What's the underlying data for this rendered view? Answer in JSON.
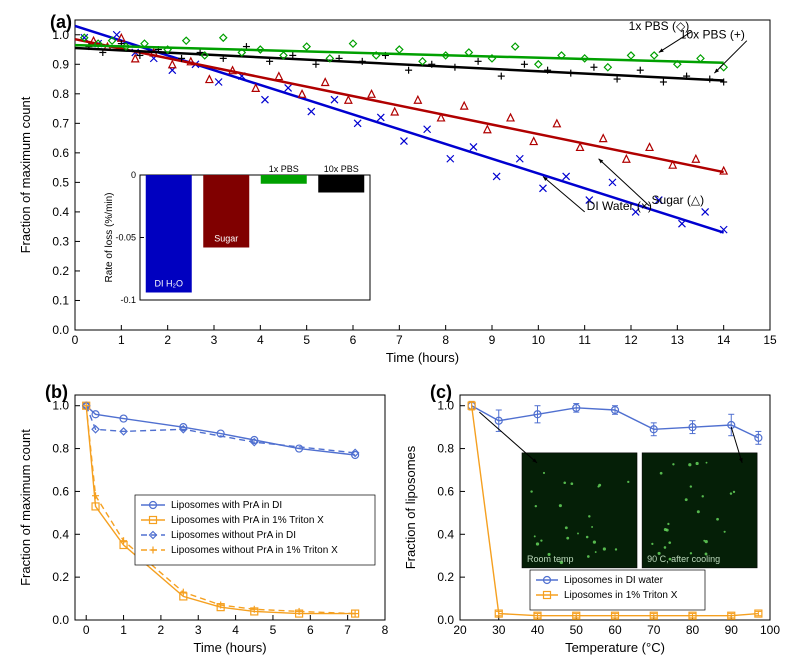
{
  "background_color": "#ffffff",
  "panelA": {
    "label": "(a)",
    "type": "scatter+line",
    "xlabel": "Time (hours)",
    "ylabel": "Fraction of maximum count",
    "label_fontsize": 13,
    "xlim": [
      0,
      15
    ],
    "ylim": [
      0,
      1.05
    ],
    "xtick_step": 1,
    "ytick_step": 0.1,
    "grid_color": "none",
    "axis_color": "#000000",
    "series": {
      "pbs1": {
        "name": "1x PBS (◇)",
        "marker": "diamond",
        "line_color": "#00A000",
        "line_width": 2.5,
        "x": [
          0.2,
          0.5,
          0.8,
          1.1,
          1.5,
          2,
          2.4,
          2.8,
          3.2,
          3.6,
          4,
          4.5,
          5,
          5.5,
          6,
          6.5,
          7,
          7.5,
          8,
          8.5,
          9,
          9.5,
          10,
          10.5,
          11,
          11.5,
          12,
          12.5,
          13,
          13.5,
          14
        ],
        "y": [
          0.99,
          0.97,
          0.98,
          0.96,
          0.97,
          0.95,
          0.98,
          0.93,
          0.99,
          0.94,
          0.95,
          0.93,
          0.96,
          0.92,
          0.97,
          0.93,
          0.95,
          0.91,
          0.93,
          0.94,
          0.92,
          0.96,
          0.9,
          0.93,
          0.92,
          0.89,
          0.93,
          0.93,
          0.9,
          0.92,
          0.89
        ],
        "fit_y0": 0.965,
        "fit_y1": 0.905
      },
      "pbs10": {
        "name": "10x PBS (+)",
        "marker": "plus",
        "line_color": "#000000",
        "line_width": 2.5,
        "x": [
          0.3,
          0.6,
          1.0,
          1.4,
          1.8,
          2.3,
          2.7,
          3.2,
          3.7,
          4.2,
          4.7,
          5.2,
          5.7,
          6.2,
          6.7,
          7.2,
          7.7,
          8.2,
          8.7,
          9.2,
          9.7,
          10.2,
          10.7,
          11.2,
          11.7,
          12.2,
          12.7,
          13.2,
          13.7,
          14
        ],
        "y": [
          0.96,
          0.94,
          0.97,
          0.93,
          0.95,
          0.92,
          0.94,
          0.92,
          0.96,
          0.91,
          0.93,
          0.9,
          0.92,
          0.91,
          0.93,
          0.88,
          0.9,
          0.89,
          0.91,
          0.86,
          0.9,
          0.88,
          0.87,
          0.89,
          0.85,
          0.88,
          0.84,
          0.86,
          0.85,
          0.84
        ],
        "fit_y0": 0.955,
        "fit_y1": 0.845
      },
      "sugar": {
        "name": "Sugar (△)",
        "marker": "triangle",
        "line_color": "#B00000",
        "line_width": 2.5,
        "x": [
          0.4,
          0.7,
          1.0,
          1.3,
          1.7,
          2.1,
          2.5,
          2.9,
          3.4,
          3.9,
          4.4,
          4.9,
          5.4,
          5.9,
          6.4,
          6.9,
          7.4,
          7.9,
          8.4,
          8.9,
          9.4,
          9.9,
          10.4,
          10.9,
          11.4,
          11.9,
          12.4,
          12.9,
          13.4,
          14
        ],
        "y": [
          0.98,
          0.96,
          0.99,
          0.92,
          0.94,
          0.9,
          0.91,
          0.85,
          0.88,
          0.82,
          0.86,
          0.8,
          0.84,
          0.78,
          0.8,
          0.74,
          0.78,
          0.72,
          0.76,
          0.68,
          0.72,
          0.64,
          0.7,
          0.62,
          0.65,
          0.58,
          0.62,
          0.56,
          0.58,
          0.54
        ],
        "fit_y0": 0.985,
        "fit_y1": 0.535
      },
      "di": {
        "name": "DI Water (×)",
        "marker": "x",
        "line_color": "#0000D0",
        "line_width": 2.5,
        "x": [
          0.2,
          0.5,
          0.9,
          1.3,
          1.7,
          2.1,
          2.6,
          3.1,
          3.6,
          4.1,
          4.6,
          5.1,
          5.6,
          6.1,
          6.6,
          7.1,
          7.6,
          8.1,
          8.6,
          9.1,
          9.6,
          10.1,
          10.6,
          11.1,
          11.6,
          12.1,
          12.6,
          13.1,
          13.6,
          14
        ],
        "y": [
          0.99,
          0.97,
          1.0,
          0.94,
          0.92,
          0.88,
          0.9,
          0.84,
          0.86,
          0.78,
          0.82,
          0.74,
          0.78,
          0.7,
          0.72,
          0.64,
          0.68,
          0.58,
          0.62,
          0.52,
          0.58,
          0.48,
          0.52,
          0.44,
          0.5,
          0.4,
          0.44,
          0.36,
          0.4,
          0.34
        ],
        "fit_y0": 1.03,
        "fit_y1": 0.33
      }
    },
    "annotations": {
      "pbs1_label": "1x PBS (◇)",
      "pbs10_label": "10x PBS (+)",
      "sugar_label": "Sugar (△)",
      "di_label": "DI Water (×)"
    },
    "inset": {
      "type": "bar",
      "ylabel": "Rate of loss (%/min)",
      "label_fontsize": 10,
      "ylim": [
        -0.1,
        0
      ],
      "ytick_step": 0.05,
      "categories": [
        "DI H₂O",
        "Sugar",
        "1x PBS",
        "10x PBS"
      ],
      "values": [
        -0.094,
        -0.058,
        -0.007,
        -0.014
      ],
      "bar_colors": [
        "#0000C0",
        "#800000",
        "#00A000",
        "#000000"
      ],
      "bar_width": 0.8,
      "border_color": "#000000"
    }
  },
  "panelB": {
    "label": "(b)",
    "type": "line",
    "xlabel": "Time (hours)",
    "ylabel": "Fraction of maximum count",
    "xlim": [
      -0.3,
      8
    ],
    "ylim": [
      0,
      1.05
    ],
    "xtick_step": 1,
    "ytick_step": 0.2,
    "label_fontsize": 13,
    "series": [
      {
        "name": "Liposomes with PrA in DI",
        "color": "#5070D0",
        "marker": "circle",
        "dash": "none",
        "x": [
          0,
          0.25,
          1,
          2.6,
          3.6,
          4.5,
          5.7,
          7.2
        ],
        "y": [
          1.0,
          0.96,
          0.94,
          0.9,
          0.87,
          0.84,
          0.8,
          0.77
        ]
      },
      {
        "name": "Liposomes with PrA in 1% Triton X",
        "color": "#F5A020",
        "marker": "square",
        "dash": "none",
        "x": [
          0,
          0.25,
          1,
          2.6,
          3.6,
          4.5,
          5.7,
          7.2
        ],
        "y": [
          1.0,
          0.53,
          0.35,
          0.11,
          0.06,
          0.04,
          0.03,
          0.03
        ]
      },
      {
        "name": "Liposomes without PrA in DI",
        "color": "#5070D0",
        "marker": "diamond",
        "dash": "6,4",
        "x": [
          0,
          0.25,
          1,
          2.6,
          4.5,
          7.2
        ],
        "y": [
          1.0,
          0.89,
          0.88,
          0.89,
          0.83,
          0.78
        ]
      },
      {
        "name": "Liposomes without PrA in 1% Triton X",
        "color": "#F5A020",
        "marker": "plus",
        "dash": "6,4",
        "x": [
          0,
          0.25,
          1,
          2.6,
          3.6,
          4.5,
          5.7,
          7.2
        ],
        "y": [
          1.0,
          0.58,
          0.37,
          0.13,
          0.07,
          0.05,
          0.04,
          0.03
        ]
      }
    ]
  },
  "panelC": {
    "label": "(c)",
    "type": "line",
    "xlabel": "Temperature (°C)",
    "ylabel": "Fraction of liposomes",
    "xlim": [
      20,
      100
    ],
    "ylim": [
      0,
      1.05
    ],
    "xtick_step": 10,
    "ytick_step": 0.2,
    "label_fontsize": 13,
    "series": [
      {
        "name": "Liposomes in DI water",
        "color": "#5070D0",
        "marker": "circle",
        "x": [
          23,
          30,
          40,
          50,
          60,
          70,
          80,
          90,
          97
        ],
        "y": [
          1.0,
          0.93,
          0.96,
          0.99,
          0.98,
          0.89,
          0.9,
          0.91,
          0.85
        ],
        "err": [
          0.02,
          0.05,
          0.04,
          0.02,
          0.02,
          0.03,
          0.03,
          0.05,
          0.03
        ]
      },
      {
        "name": "Liposomes in 1% Triton X",
        "color": "#F5A020",
        "marker": "square",
        "x": [
          23,
          30,
          40,
          50,
          60,
          70,
          80,
          90,
          97
        ],
        "y": [
          1.0,
          0.03,
          0.02,
          0.02,
          0.02,
          0.02,
          0.02,
          0.02,
          0.03
        ],
        "err": [
          0.02,
          0.01,
          0.01,
          0.01,
          0.01,
          0.01,
          0.01,
          0.01,
          0.01
        ]
      }
    ],
    "inset_images": {
      "left_label": "Room temp",
      "right_label": "90 C, after cooling",
      "bg_color": "#051f07",
      "dot_color": "#6AE060"
    }
  }
}
